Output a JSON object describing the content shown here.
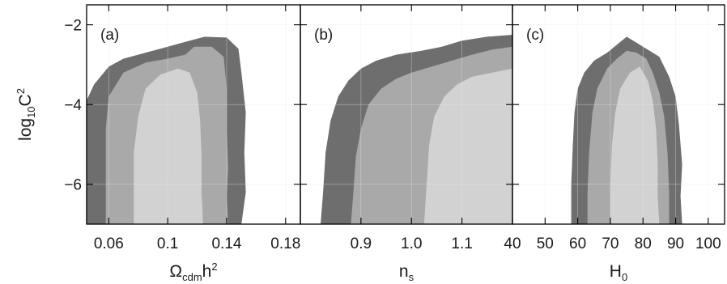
{
  "colors": {
    "outer_contour": "#6e6e6e",
    "middle_contour": "#a9a9a9",
    "inner_contour": "#d2d2d2",
    "frame": "#000000",
    "grid": "#e8e8e8"
  },
  "chart_data": [
    {
      "type": "contour",
      "panel_label": "(a)",
      "xlim": [
        0.045,
        0.19
      ],
      "ylim": [
        -7,
        -1.5
      ],
      "xticks": [
        0.06,
        0.1,
        0.14,
        0.18
      ],
      "xtick_labels": [
        "0.06",
        "0.1",
        "0.14",
        "0.18"
      ],
      "yticks": [
        -6,
        -4,
        -2
      ],
      "ytick_labels": [
        "−6",
        "−4",
        "−2"
      ],
      "xlabel": {
        "main": "Ω",
        "sub": "cdm",
        "tail": "h",
        "sup": "2"
      },
      "ylabel": {
        "main": "log",
        "sub": "10",
        "tail": "C",
        "sup": "2"
      },
      "contours": [
        {
          "level": "outer",
          "points": [
            [
              0.045,
              -7
            ],
            [
              0.045,
              -3.9
            ],
            [
              0.05,
              -3.5
            ],
            [
              0.06,
              -3.05
            ],
            [
              0.07,
              -2.85
            ],
            [
              0.085,
              -2.7
            ],
            [
              0.1,
              -2.55
            ],
            [
              0.115,
              -2.4
            ],
            [
              0.125,
              -2.3
            ],
            [
              0.14,
              -2.32
            ],
            [
              0.148,
              -2.6
            ],
            [
              0.15,
              -3.2
            ],
            [
              0.153,
              -4.2
            ],
            [
              0.152,
              -5.2
            ],
            [
              0.153,
              -6.2
            ],
            [
              0.15,
              -7
            ]
          ]
        },
        {
          "level": "middle",
          "points": [
            [
              0.058,
              -7
            ],
            [
              0.058,
              -4.6
            ],
            [
              0.06,
              -3.8
            ],
            [
              0.07,
              -3.2
            ],
            [
              0.085,
              -2.95
            ],
            [
              0.1,
              -2.85
            ],
            [
              0.112,
              -2.75
            ],
            [
              0.118,
              -2.55
            ],
            [
              0.13,
              -2.55
            ],
            [
              0.138,
              -2.8
            ],
            [
              0.14,
              -3.6
            ],
            [
              0.14,
              -4.6
            ],
            [
              0.141,
              -5.6
            ],
            [
              0.14,
              -6.3
            ],
            [
              0.141,
              -7
            ]
          ]
        },
        {
          "level": "inner",
          "points": [
            [
              0.077,
              -7
            ],
            [
              0.077,
              -5.2
            ],
            [
              0.08,
              -4.3
            ],
            [
              0.085,
              -3.6
            ],
            [
              0.095,
              -3.25
            ],
            [
              0.107,
              -3.1
            ],
            [
              0.115,
              -3.2
            ],
            [
              0.12,
              -3.7
            ],
            [
              0.122,
              -4.4
            ],
            [
              0.123,
              -5.3
            ],
            [
              0.123,
              -6.2
            ],
            [
              0.124,
              -7
            ]
          ]
        }
      ]
    },
    {
      "type": "contour",
      "panel_label": "(b)",
      "xlim": [
        0.78,
        1.2
      ],
      "ylim": [
        -7,
        -1.5
      ],
      "xticks": [
        0.9,
        1.0,
        1.1
      ],
      "xtick_labels": [
        "0.9",
        "1.0",
        "1.1"
      ],
      "yticks": [
        -6,
        -4,
        -2
      ],
      "ytick_labels": [],
      "xlabel": {
        "main": "n",
        "sub": "s",
        "tail": "",
        "sup": ""
      },
      "ylabel": null,
      "contours": [
        {
          "level": "outer",
          "points": [
            [
              0.82,
              -7
            ],
            [
              0.825,
              -6.2
            ],
            [
              0.83,
              -5.2
            ],
            [
              0.84,
              -4.4
            ],
            [
              0.855,
              -3.8
            ],
            [
              0.875,
              -3.4
            ],
            [
              0.9,
              -3.1
            ],
            [
              0.93,
              -2.9
            ],
            [
              0.97,
              -2.75
            ],
            [
              1.02,
              -2.65
            ],
            [
              1.06,
              -2.55
            ],
            [
              1.1,
              -2.4
            ],
            [
              1.15,
              -2.3
            ],
            [
              1.2,
              -2.25
            ],
            [
              1.2,
              -7
            ]
          ]
        },
        {
          "level": "middle",
          "points": [
            [
              0.88,
              -7
            ],
            [
              0.885,
              -6.2
            ],
            [
              0.89,
              -5.3
            ],
            [
              0.9,
              -4.6
            ],
            [
              0.915,
              -4.0
            ],
            [
              0.94,
              -3.6
            ],
            [
              0.97,
              -3.35
            ],
            [
              1.0,
              -3.2
            ],
            [
              1.04,
              -3.05
            ],
            [
              1.08,
              -2.9
            ],
            [
              1.12,
              -2.75
            ],
            [
              1.16,
              -2.62
            ],
            [
              1.2,
              -2.55
            ],
            [
              1.2,
              -7
            ]
          ]
        },
        {
          "level": "inner",
          "points": [
            [
              1.025,
              -7
            ],
            [
              1.03,
              -6.0
            ],
            [
              1.035,
              -5.0
            ],
            [
              1.045,
              -4.3
            ],
            [
              1.065,
              -3.8
            ],
            [
              1.09,
              -3.5
            ],
            [
              1.12,
              -3.3
            ],
            [
              1.16,
              -3.2
            ],
            [
              1.2,
              -3.1
            ],
            [
              1.2,
              -7
            ]
          ]
        }
      ]
    },
    {
      "type": "contour",
      "panel_label": "(c)",
      "xlim": [
        40,
        105
      ],
      "ylim": [
        -7,
        -1.5
      ],
      "xticks": [
        40,
        50,
        60,
        70,
        80,
        90,
        100
      ],
      "xtick_labels": [
        "40",
        "50",
        "60",
        "70",
        "80",
        "90",
        "100"
      ],
      "yticks": [
        -6,
        -4,
        -2
      ],
      "ytick_labels": [],
      "xlabel": {
        "main": "H",
        "sub": "0",
        "tail": "",
        "sup": ""
      },
      "ylabel": null,
      "contours": [
        {
          "level": "outer",
          "points": [
            [
              58,
              -7
            ],
            [
              58,
              -6
            ],
            [
              58.5,
              -5
            ],
            [
              59,
              -4.2
            ],
            [
              60,
              -3.6
            ],
            [
              62,
              -3.2
            ],
            [
              65,
              -2.9
            ],
            [
              69,
              -2.7
            ],
            [
              72,
              -2.5
            ],
            [
              75,
              -2.3
            ],
            [
              78,
              -2.45
            ],
            [
              81,
              -2.6
            ],
            [
              85,
              -2.8
            ],
            [
              88,
              -3.3
            ],
            [
              90,
              -3.8
            ],
            [
              91,
              -4.5
            ],
            [
              92,
              -5.5
            ],
            [
              91.5,
              -6.3
            ],
            [
              92,
              -7
            ]
          ]
        },
        {
          "level": "middle",
          "points": [
            [
              63,
              -7
            ],
            [
              63,
              -6.2
            ],
            [
              63.5,
              -5.2
            ],
            [
              64.5,
              -4.2
            ],
            [
              66,
              -3.6
            ],
            [
              69,
              -3.1
            ],
            [
              72,
              -2.85
            ],
            [
              75,
              -2.65
            ],
            [
              78,
              -2.7
            ],
            [
              81,
              -2.85
            ],
            [
              83,
              -3.2
            ],
            [
              85,
              -3.7
            ],
            [
              86.5,
              -4.3
            ],
            [
              87.5,
              -5.2
            ],
            [
              88,
              -6.2
            ],
            [
              88,
              -7
            ]
          ]
        },
        {
          "level": "inner",
          "points": [
            [
              70,
              -7
            ],
            [
              70,
              -6
            ],
            [
              70.5,
              -5
            ],
            [
              71.5,
              -4.2
            ],
            [
              73,
              -3.6
            ],
            [
              76,
              -3.2
            ],
            [
              79,
              -3.05
            ],
            [
              81.5,
              -3.4
            ],
            [
              83,
              -3.9
            ],
            [
              84,
              -4.6
            ],
            [
              84.5,
              -5.5
            ],
            [
              84.5,
              -6.3
            ],
            [
              85,
              -7
            ]
          ]
        }
      ]
    }
  ]
}
